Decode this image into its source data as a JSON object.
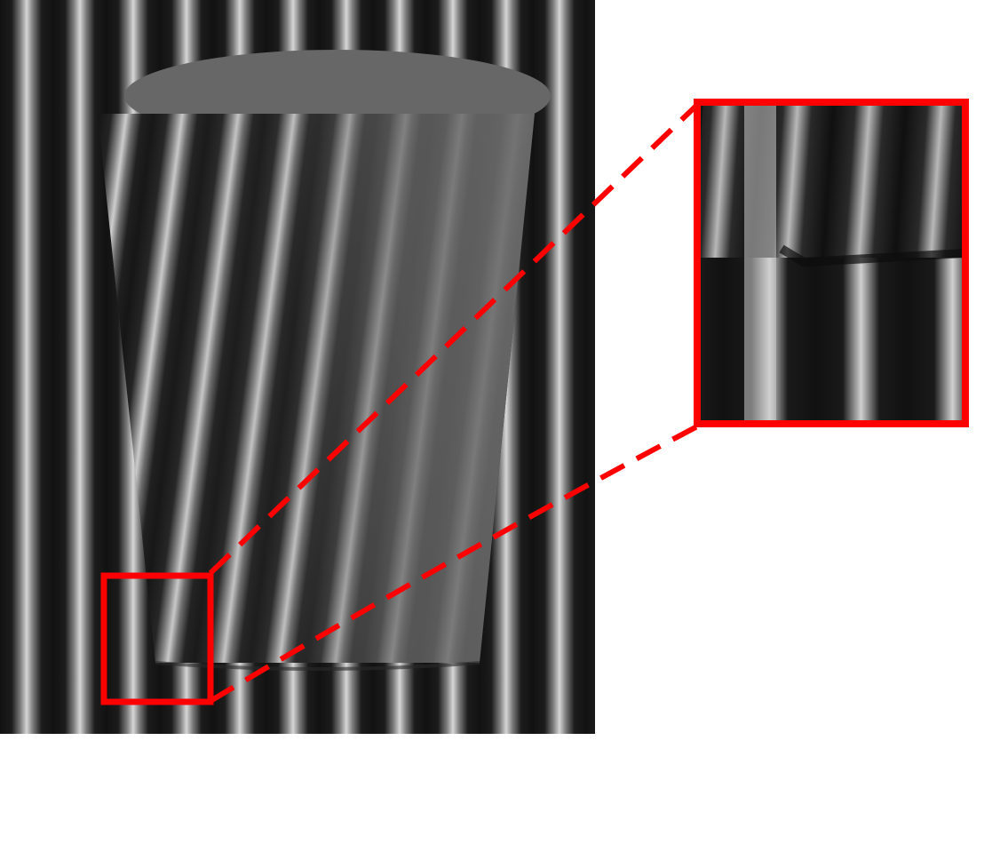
{
  "figure": {
    "main_image": {
      "subject": "striped-background-with-trapezoidal-cup-occluder",
      "stripe_colors": {
        "dark": "#161616",
        "light": "#d2d2d2",
        "occluder_gray": "#676767"
      }
    },
    "highlight": {
      "box_color": "#ff0000",
      "connector_style": "dashed"
    },
    "zoom_inset": {
      "border_color": "#ff0000"
    }
  }
}
